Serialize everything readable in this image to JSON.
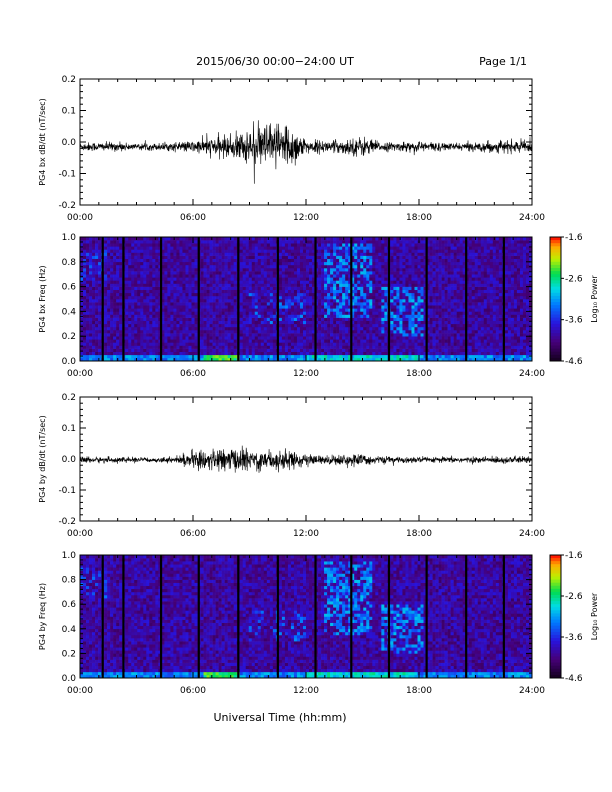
{
  "header": {
    "title": "2015/06/30  00:00−24:00 UT",
    "page": "Page 1/1"
  },
  "xaxis_title": "Universal Time (hh:mm)",
  "chart_data": [
    {
      "type": "line",
      "ylabel": "PG4 bx dB/dt (nT/sec)",
      "xlim": [
        0,
        24
      ],
      "ylim": [
        -0.2,
        0.2
      ],
      "x_tick_labels": [
        "00:00",
        "06:00",
        "12:00",
        "18:00",
        "24:00"
      ],
      "y_tick_labels": [
        "-0.2",
        "-0.1",
        "0.0",
        "0.1",
        "0.2"
      ],
      "y_ticks": [
        -0.2,
        -0.1,
        0.0,
        0.1,
        0.2
      ],
      "series": [
        {
          "envelope_hours": [
            0,
            1,
            2,
            3,
            4,
            5,
            6,
            7,
            8,
            9,
            10,
            11,
            12,
            13,
            14,
            15,
            16,
            17,
            18,
            19,
            20,
            21,
            22,
            23,
            24
          ],
          "envelope_amplitude": [
            0.015,
            0.015,
            0.015,
            0.012,
            0.012,
            0.015,
            0.02,
            0.03,
            0.04,
            0.06,
            0.08,
            0.09,
            0.025,
            0.02,
            0.025,
            0.035,
            0.015,
            0.015,
            0.02,
            0.015,
            0.012,
            0.015,
            0.02,
            0.02,
            0.02
          ],
          "baseline": -0.015
        }
      ]
    },
    {
      "type": "heatmap",
      "ylabel": "PG4 bx Freq (Hz)",
      "xlim": [
        0,
        24
      ],
      "ylim": [
        0.0,
        1.0
      ],
      "x_tick_labels": [
        "00:00",
        "06:00",
        "12:00",
        "18:00",
        "24:00"
      ],
      "y_tick_labels": [
        "0.0",
        "0.2",
        "0.4",
        "0.6",
        "0.8",
        "1.0"
      ],
      "y_ticks": [
        0.0,
        0.2,
        0.4,
        0.6,
        0.8,
        1.0
      ],
      "gap_hours": [
        1.2,
        2.3,
        4.3,
        6.3,
        8.4,
        10.5,
        12.5,
        14.4,
        16.4,
        18.4,
        20.5,
        22.5
      ],
      "colorbar": {
        "label": "Log₁₀ Power",
        "ticks": [
          "-1.6",
          "-2.6",
          "-3.6",
          "-4.6"
        ],
        "range": [
          -4.6,
          -1.6
        ]
      }
    },
    {
      "type": "line",
      "ylabel": "PG4 by dB/dt (nT/sec)",
      "xlim": [
        0,
        24
      ],
      "ylim": [
        -0.2,
        0.2
      ],
      "x_tick_labels": [
        "00:00",
        "06:00",
        "12:00",
        "18:00",
        "24:00"
      ],
      "y_tick_labels": [
        "-0.2",
        "-0.1",
        "0.0",
        "0.1",
        "0.2"
      ],
      "y_ticks": [
        -0.2,
        -0.1,
        0.0,
        0.1,
        0.2
      ],
      "series": [
        {
          "envelope_hours": [
            0,
            1,
            2,
            3,
            4,
            5,
            6,
            7,
            8,
            9,
            10,
            11,
            12,
            13,
            14,
            15,
            16,
            17,
            18,
            19,
            20,
            21,
            22,
            23,
            24
          ],
          "envelope_amplitude": [
            0.012,
            0.01,
            0.01,
            0.008,
            0.008,
            0.01,
            0.03,
            0.035,
            0.04,
            0.04,
            0.035,
            0.035,
            0.02,
            0.015,
            0.02,
            0.02,
            0.012,
            0.01,
            0.012,
            0.01,
            0.01,
            0.01,
            0.012,
            0.012,
            0.012
          ],
          "baseline": -0.003
        }
      ]
    },
    {
      "type": "heatmap",
      "ylabel": "PG4 by Freq (Hz)",
      "xlim": [
        0,
        24
      ],
      "ylim": [
        0.0,
        1.0
      ],
      "x_tick_labels": [
        "00:00",
        "06:00",
        "12:00",
        "18:00",
        "24:00"
      ],
      "y_tick_labels": [
        "0.0",
        "0.2",
        "0.4",
        "0.6",
        "0.8",
        "1.0"
      ],
      "y_ticks": [
        0.0,
        0.2,
        0.4,
        0.6,
        0.8,
        1.0
      ],
      "gap_hours": [
        1.2,
        2.3,
        4.3,
        6.3,
        8.4,
        10.5,
        12.5,
        14.4,
        16.4,
        18.4,
        20.5,
        22.5
      ],
      "colorbar": {
        "label": "Log₁₀ Power",
        "ticks": [
          "-1.6",
          "-2.6",
          "-3.6",
          "-4.6"
        ],
        "range": [
          -4.6,
          -1.6
        ]
      }
    }
  ]
}
